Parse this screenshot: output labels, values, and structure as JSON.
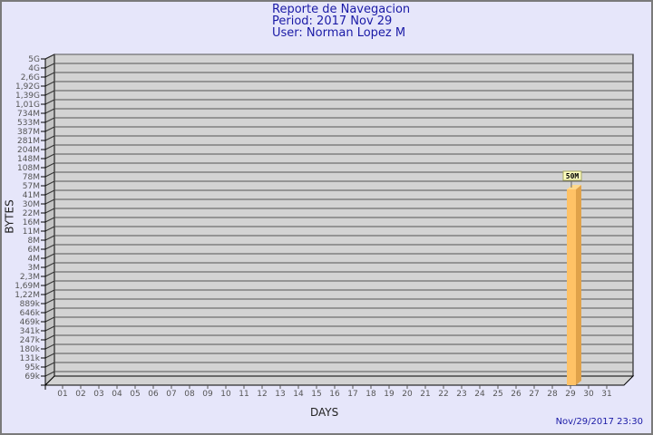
{
  "header": {
    "title": "Reporte de Navegacion",
    "period": "Period: 2017 Nov 29",
    "user": "User: Norman Lopez M"
  },
  "timestamp": "Nov/29/2017 23:30",
  "chart_data": {
    "type": "bar",
    "xlabel": "DAYS",
    "ylabel": "BYTES",
    "y_scale": "log",
    "grid": true,
    "categories": [
      "01",
      "02",
      "03",
      "04",
      "05",
      "06",
      "07",
      "08",
      "09",
      "10",
      "11",
      "12",
      "13",
      "14",
      "15",
      "16",
      "17",
      "18",
      "19",
      "20",
      "21",
      "22",
      "23",
      "24",
      "25",
      "26",
      "27",
      "28",
      "29",
      "30",
      "31"
    ],
    "values": [
      0,
      0,
      0,
      0,
      0,
      0,
      0,
      0,
      0,
      0,
      0,
      0,
      0,
      0,
      0,
      0,
      0,
      0,
      0,
      0,
      0,
      0,
      0,
      0,
      0,
      0,
      0,
      0,
      50000000,
      0,
      0
    ],
    "data_labels": {
      "29": "50M"
    },
    "y_ticks": [
      "5G",
      "4G",
      "2,6G",
      "1,92G",
      "1,39G",
      "1,01G",
      "734M",
      "533M",
      "387M",
      "281M",
      "204M",
      "148M",
      "108M",
      "78M",
      "57M",
      "41M",
      "30M",
      "22M",
      "16M",
      "11M",
      "8M",
      "6M",
      "4M",
      "3M",
      "2,3M",
      "1,69M",
      "1,22M",
      "889k",
      "646k",
      "469k",
      "341k",
      "247k",
      "180k",
      "131k",
      "95k",
      "69k"
    ],
    "colors": {
      "bar": "#ffc266",
      "bar_side": "#e0a24a",
      "wall": "#d3d3d3",
      "grid": "#555555",
      "label_bg": "#ffffc0"
    }
  }
}
